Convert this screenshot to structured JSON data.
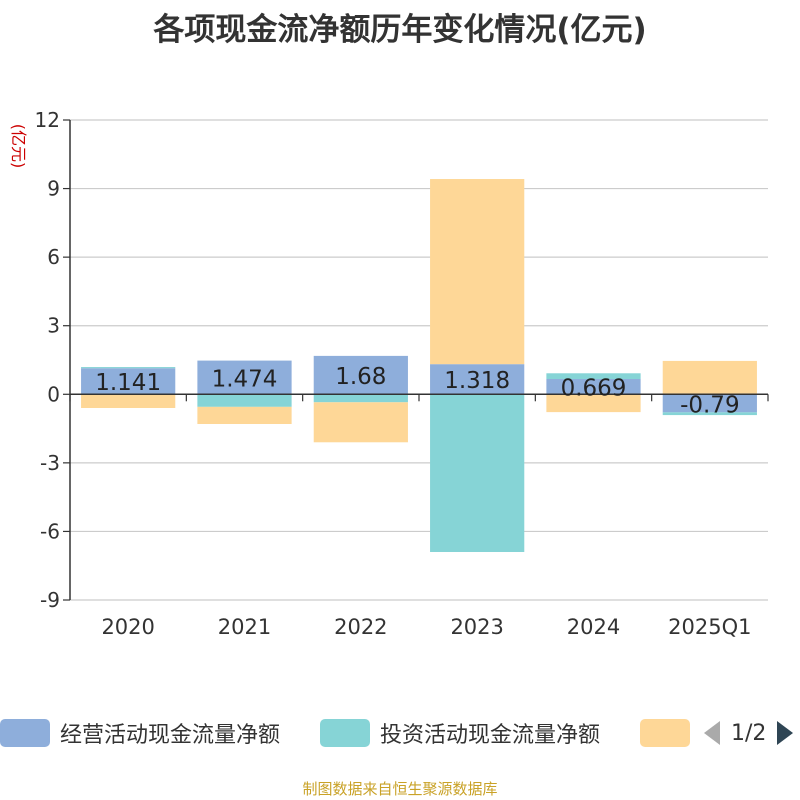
{
  "source_note": "制图数据来自恒生聚源数据库",
  "pager": {
    "text": "1/2"
  },
  "chart_data": {
    "type": "bar",
    "stacked": true,
    "title": "各项现金流净额历年变化情况(亿元)",
    "ylabel": "(亿元)",
    "ylim": [
      -9,
      12
    ],
    "yticks": [
      12,
      9,
      6,
      3,
      0,
      -3,
      -6,
      -9
    ],
    "grid": true,
    "legend_position": "bottom",
    "categories": [
      "2020",
      "2021",
      "2022",
      "2023",
      "2024",
      "2025Q1"
    ],
    "series": [
      {
        "name": "经营活动现金流量净额",
        "color": "#8eaedb",
        "values": [
          1.141,
          1.474,
          1.68,
          1.318,
          0.669,
          -0.79
        ],
        "labels": [
          "1.141",
          "1.474",
          "1.68",
          "1.318",
          "0.669",
          "-0.79"
        ]
      },
      {
        "name": "投资活动现金流量净额",
        "color": "#86d4d6",
        "values": [
          0.05,
          -0.55,
          -0.35,
          -6.9,
          0.25,
          -0.12
        ]
      },
      {
        "name": "",
        "color": "#fed797",
        "values": [
          -0.6,
          -0.75,
          -1.75,
          8.1,
          -0.78,
          1.46
        ]
      }
    ]
  }
}
